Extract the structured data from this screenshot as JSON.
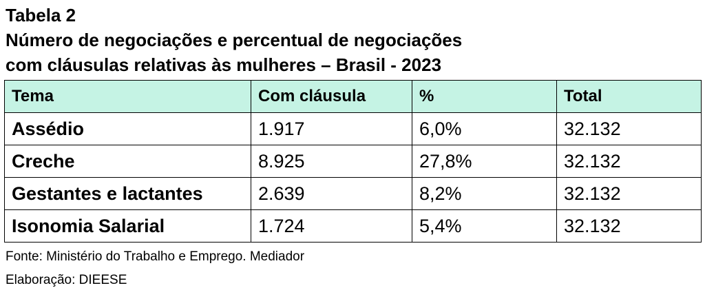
{
  "title": {
    "line1": "Tabela 2",
    "line2": "Número de negociações e percentual de negociações",
    "line3": "com cláusulas relativas às mulheres – Brasil - 2023"
  },
  "table": {
    "header_color": "#c5f3e4",
    "columns": [
      "Tema",
      "Com cláusula",
      "%",
      "Total"
    ],
    "rows": [
      [
        "Assédio",
        "1.917",
        "6,0%",
        "32.132"
      ],
      [
        "Creche",
        "8.925",
        "27,8%",
        "32.132"
      ],
      [
        "Gestantes e lactantes",
        "2.639",
        "8,2%",
        "32.132"
      ],
      [
        "Isonomia Salarial",
        "1.724",
        "5,4%",
        "32.132"
      ]
    ]
  },
  "footer": {
    "source": "Fonte: Ministério do Trabalho e Emprego. Mediador",
    "elaboration": "Elaboração: DIEESE"
  }
}
